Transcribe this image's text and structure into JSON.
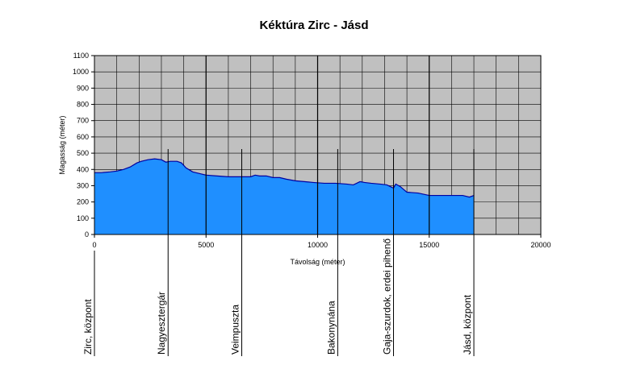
{
  "chart_data": {
    "type": "area",
    "title": "Kéktúra Zirc - Jásd",
    "xlabel": "Távolság (méter)",
    "ylabel": "Magasság (méter)",
    "xlim": [
      0,
      20000
    ],
    "ylim": [
      0,
      1100
    ],
    "x_ticks": [
      0,
      5000,
      10000,
      15000,
      20000
    ],
    "y_ticks": [
      0,
      100,
      200,
      300,
      400,
      500,
      600,
      700,
      800,
      900,
      1000,
      1100
    ],
    "grid": true,
    "plot_background": "#c0c0c0",
    "fill_color": "#1f8fff",
    "line_color": "#0000a0",
    "x": [
      0,
      300,
      700,
      1000,
      1300,
      1600,
      1900,
      2100,
      2400,
      2700,
      3000,
      3200,
      3400,
      3700,
      3900,
      4100,
      4400,
      4700,
      5000,
      5500,
      6000,
      6500,
      7000,
      7200,
      7400,
      7700,
      8000,
      8300,
      8600,
      9000,
      9400,
      9800,
      10300,
      10800,
      11300,
      11600,
      11900,
      12100,
      12400,
      12800,
      13100,
      13250,
      13400,
      13500,
      13700,
      14000,
      14500,
      15000,
      15500,
      16000,
      16500,
      16800,
      17000
    ],
    "values": [
      380,
      380,
      385,
      390,
      400,
      415,
      440,
      450,
      460,
      465,
      460,
      445,
      450,
      450,
      440,
      410,
      385,
      375,
      365,
      360,
      355,
      355,
      355,
      365,
      360,
      360,
      350,
      350,
      340,
      330,
      325,
      320,
      315,
      315,
      310,
      305,
      325,
      320,
      315,
      310,
      305,
      295,
      285,
      310,
      295,
      260,
      255,
      240,
      240,
      240,
      240,
      230,
      240
    ],
    "waypoints": [
      {
        "name": "Zirc, központ",
        "x": 0
      },
      {
        "name": "Nagyesztergár",
        "x": 3300
      },
      {
        "name": "Veimpuszta",
        "x": 6600
      },
      {
        "name": "Bakonynána",
        "x": 10900
      },
      {
        "name": "Gaja-szurdok, erdei pihenő",
        "x": 13400
      },
      {
        "name": "Jásd, központ",
        "x": 17000
      }
    ]
  }
}
